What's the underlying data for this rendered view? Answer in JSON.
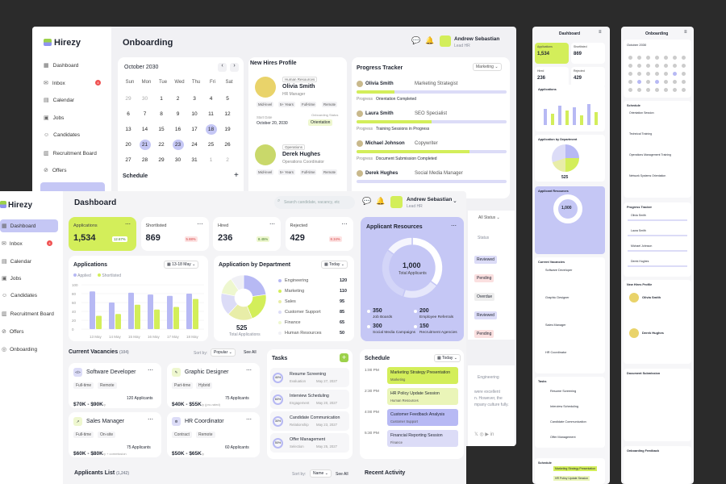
{
  "back": {
    "logo": "Hirezy",
    "title": "Onboarding",
    "user": {
      "name": "Andrew Sebastian",
      "role": "Lead HR"
    },
    "nav": [
      "Dashboard",
      "Inbox",
      "Calendar",
      "Jobs",
      "Candidates",
      "Recruitment Board",
      "Offers"
    ],
    "inbox_badge": "4",
    "calendar": {
      "month": "October 2030",
      "days": [
        "Sun",
        "Mon",
        "Tue",
        "Wed",
        "Thu",
        "Fri",
        "Sat"
      ],
      "weeks": [
        [
          "29",
          "30",
          "1",
          "2",
          "3",
          "4",
          "5"
        ],
        [
          "6",
          "7",
          "8",
          "9",
          "10",
          "11",
          "12"
        ],
        [
          "13",
          "14",
          "15",
          "16",
          "17",
          "18",
          "19"
        ],
        [
          "20",
          "21",
          "22",
          "23",
          "24",
          "25",
          "26"
        ],
        [
          "27",
          "28",
          "29",
          "30",
          "31",
          "1",
          "2"
        ]
      ]
    },
    "schedule_title": "Schedule",
    "new_hires": {
      "title": "New Hires Profile",
      "people": [
        {
          "dept": "Human Resources",
          "name": "Olivia Smith",
          "role": "HR Manager",
          "tags": [
            "Mid-level",
            "5+ Years",
            "Full-time",
            "Remote"
          ],
          "start_label": "Start Date",
          "start": "October 20, 2030",
          "status_label": "Onboarding Status",
          "status": "Orientation"
        },
        {
          "dept": "Operations",
          "name": "Derek Hughes",
          "role": "Operations Coordinator",
          "tags": [
            "Mid-level",
            "5+ Years",
            "Full-time",
            "Remote"
          ]
        }
      ]
    },
    "progress": {
      "title": "Progress Tracker",
      "filter": "Marketing",
      "label": "Progress",
      "rows": [
        {
          "name": "Olivia Smith",
          "role": "Marketing Strategist",
          "step": "Orientation Completed",
          "pct": 0.25
        },
        {
          "name": "Laura Smith",
          "role": "SEO Specialist",
          "step": "Training Sessions in Progress",
          "pct": 0.5
        },
        {
          "name": "Michael Johnson",
          "role": "Copywriter",
          "step": "Document Submission Completed",
          "pct": 0.75
        },
        {
          "name": "Derek Hughes",
          "role": "Social Media Manager",
          "step": "",
          "pct": 0
        }
      ]
    },
    "status_filter": "All Status",
    "status_col": "Status",
    "statuses": [
      "Reviewed",
      "Pending",
      "Overdue",
      "Reviewed",
      "Pending"
    ],
    "dept_suffix": "Engineering",
    "text_snips": [
      "were excellent",
      "n. However, the",
      "mpany culture fully."
    ]
  },
  "main": {
    "logo": "Hirezy",
    "title": "Dashboard",
    "search_placeholder": "Search candidate, vacancy, etc",
    "user": {
      "name": "Andrew Sebastian",
      "role": "Lead HR"
    },
    "nav": [
      "Dashboard",
      "Inbox",
      "Calendar",
      "Jobs",
      "Candidates",
      "Recruitment Board",
      "Offers",
      "Onboarding"
    ],
    "inbox_badge": "4",
    "stats": [
      {
        "label": "Applications",
        "value": "1,534",
        "delta": "12.67%",
        "up": true
      },
      {
        "label": "Shortlisted",
        "value": "869",
        "delta": "5.88%",
        "up": false
      },
      {
        "label": "Hired",
        "value": "236",
        "delta": "8.45%",
        "up": true
      },
      {
        "label": "Rejected",
        "value": "429",
        "delta": "8.34%",
        "up": false
      }
    ],
    "applications": {
      "title": "Applications",
      "range": "13-18 May",
      "legend": [
        "Applied",
        "Shortlisted"
      ],
      "y_ticks": [
        "100",
        "80",
        "60",
        "40",
        "20",
        "0"
      ]
    },
    "dept": {
      "title": "Application by Department",
      "filter": "Today",
      "total": "525",
      "total_label": "Total Applications",
      "rows": [
        {
          "name": "Engineering",
          "value": "120"
        },
        {
          "name": "Marketing",
          "value": "110"
        },
        {
          "name": "Sales",
          "value": "95"
        },
        {
          "name": "Customer Support",
          "value": "85"
        },
        {
          "name": "Finance",
          "value": "65"
        },
        {
          "name": "Human Resources",
          "value": "50"
        }
      ]
    },
    "resources": {
      "title": "Applicant Resources",
      "total": "1,000",
      "total_label": "Total Applicants",
      "items": [
        {
          "value": "350",
          "label": "Job Boards"
        },
        {
          "value": "200",
          "label": "Employee Referrals"
        },
        {
          "value": "300",
          "label": "Social Media Campaigns"
        },
        {
          "value": "150",
          "label": "Recruitment Agencies"
        }
      ]
    },
    "vacancies": {
      "title": "Current Vacancies",
      "count": "(104)",
      "sort_label": "Sort by:",
      "sort": "Popular",
      "see_all": "See All",
      "items": [
        {
          "title": "Software Developer",
          "tags": [
            "Full-time",
            "Remote"
          ],
          "salary": "$70K - $90K",
          "per": "/y",
          "apps": "120 Applicants"
        },
        {
          "title": "Graphic Designer",
          "tags": [
            "Part-time",
            "Hybrid"
          ],
          "salary": "$40K - $55K",
          "per": "/y (pro-rated)",
          "apps": "75 Applicants"
        },
        {
          "title": "Sales Manager",
          "tags": [
            "Full-time",
            "On-site"
          ],
          "salary": "$60K - $80K",
          "per": "/y + commission",
          "apps": "75 Applicants"
        },
        {
          "title": "HR Coordinator",
          "tags": [
            "Contract",
            "Remote"
          ],
          "salary": "$50K - $65K",
          "per": "/y",
          "apps": "60 Applicants"
        }
      ]
    },
    "tasks": {
      "title": "Tasks",
      "items": [
        {
          "pct": "40%",
          "name": "Resume Screening",
          "cat": "Evaluation",
          "date": "May 27, 2027"
        },
        {
          "pct": "60%",
          "name": "Interview Scheduling",
          "cat": "Engagement",
          "date": "May 20, 2027"
        },
        {
          "pct": "30%",
          "name": "Candidate Communication",
          "cat": "Relationship",
          "date": "May 23, 2027"
        },
        {
          "pct": "50%",
          "name": "Offer Management",
          "cat": "Selection",
          "date": "May 25, 2027"
        }
      ]
    },
    "schedule": {
      "title": "Schedule",
      "filter": "Today",
      "times": [
        "1:00 PM",
        "2:30 PM",
        "4:00 PM",
        "5:30 PM"
      ],
      "items": [
        {
          "title": "Marketing Strategy Presentation",
          "dept": "Marketing",
          "color": "lime"
        },
        {
          "title": "HR Policy Update Session",
          "dept": "Human Resources",
          "color": "lime2"
        },
        {
          "title": "Customer Feedback Analysis",
          "dept": "Customer Support",
          "color": "pur"
        },
        {
          "title": "Financial Reporting Session",
          "dept": "Finance",
          "color": "pur2"
        }
      ]
    },
    "applicants_list": {
      "title": "Applicants List",
      "count": "(1,242)",
      "sort_label": "Sort by:",
      "sort": "Name",
      "see_all": "See All"
    },
    "recent_title": "Recent Activity"
  },
  "mobile1": {
    "title": "Dashboard",
    "stats": [
      {
        "label": "Applications",
        "value": "1,534"
      },
      {
        "label": "Shortlisted",
        "value": "869"
      },
      {
        "label": "Hired",
        "value": "236"
      },
      {
        "label": "Rejected",
        "value": "429"
      }
    ],
    "sections": [
      "Applications",
      "Application by Department",
      "Applicant Resources",
      "Current Vacancies",
      "Tasks",
      "Schedule"
    ],
    "dept_total": "525",
    "res_total": "1,000",
    "vac": [
      "Software Developer",
      "Graphic Designer",
      "Sales Manager",
      "HR Coordinator"
    ],
    "tasks": [
      "Resume Screening",
      "Interview Scheduling",
      "Candidate Communication",
      "Offer Management"
    ],
    "sched": [
      "Marketing Strategy Presentation",
      "HR Policy Update Session"
    ]
  },
  "mobile2": {
    "title": "Onboarding",
    "month": "October 2030",
    "sections": [
      "Schedule",
      "Progress Tracker",
      "New Hires Profile",
      "Document Submission",
      "Onboarding Feedback"
    ],
    "sched": [
      "Orientation Session",
      "Technical Training",
      "Operations Management Training",
      "Network Systems Orientation"
    ],
    "people": [
      "Olivia Smith",
      "Laura Smith",
      "Michael Johnson",
      "Derek Hughes"
    ],
    "hires": [
      "Olivia Smith",
      "Derek Hughes"
    ]
  },
  "colors": {
    "lime": "#d3ee5a",
    "purple": "#b7b9f4",
    "accent": "#8f93ef"
  }
}
